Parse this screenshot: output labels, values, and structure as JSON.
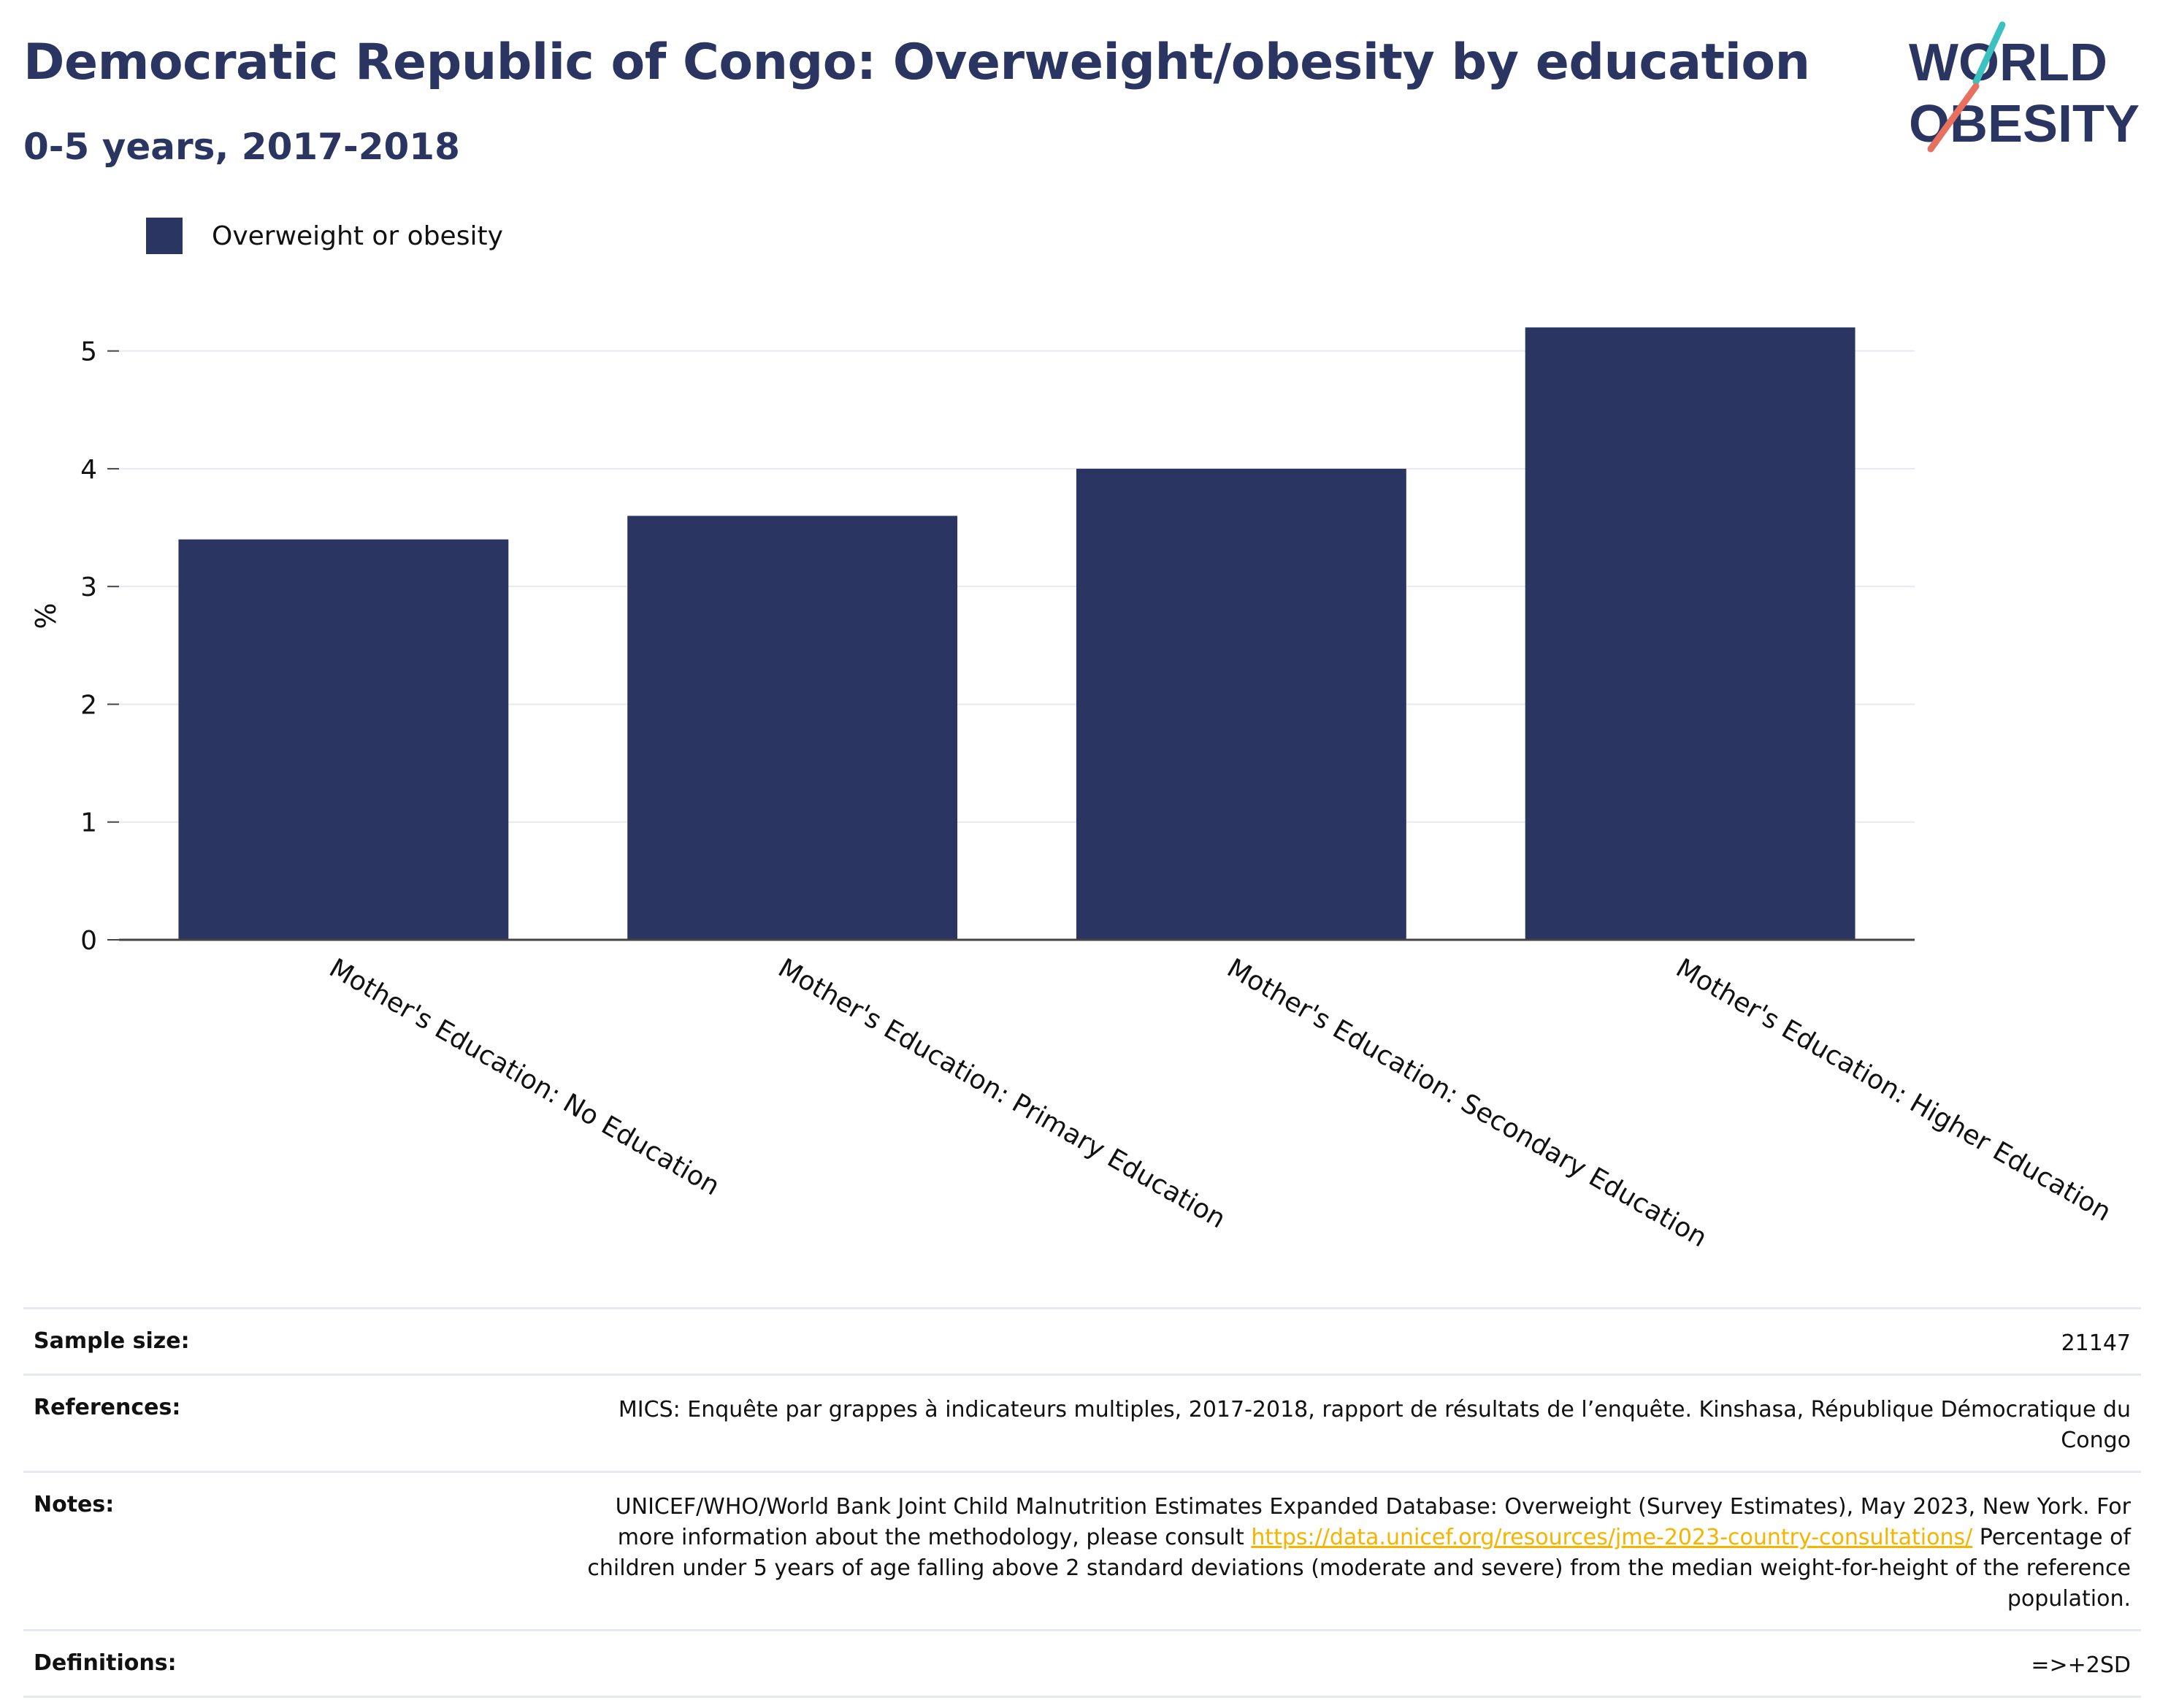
{
  "header": {
    "title": "Democratic Republic of Congo: Overweight/obesity by education",
    "subtitle": "0-5 years, 2017-2018"
  },
  "logo": {
    "line1": "WORLD",
    "line2": "OBESITY",
    "colors": {
      "text": "#2b3561",
      "slash_top": "#3cc0c0",
      "slash_bottom": "#e8705f"
    }
  },
  "legend": {
    "items": [
      {
        "label": "Overweight or obesity",
        "color": "#2b3561"
      }
    ]
  },
  "chart_data": {
    "type": "bar",
    "categories": [
      "Mother's Education: No Education",
      "Mother's Education: Primary Education",
      "Mother's Education: Secondary Education",
      "Mother's Education: Higher Education"
    ],
    "series": [
      {
        "name": "Overweight or obesity",
        "values": [
          3.4,
          3.6,
          4.0,
          5.2
        ],
        "color": "#2b3561"
      }
    ],
    "ylabel": "%",
    "yticks": [
      "0",
      "1",
      "2",
      "3",
      "4",
      "5"
    ],
    "ylim": [
      0,
      5.5
    ],
    "grid": true,
    "legend_position": "top-left"
  },
  "info": {
    "rows": [
      {
        "label": "Sample size:",
        "value": "21147"
      },
      {
        "label": "References:",
        "value": "MICS: Enquête par grappes à indicateurs multiples, 2017-2018, rapport de résultats de l’enquête. Kinshasa, République Démocratique du Congo"
      },
      {
        "label": "Notes:",
        "value_before_link": "UNICEF/WHO/World Bank Joint Child Malnutrition Estimates Expanded Database: Overweight (Survey Estimates), May 2023, New York. For more information about the methodology, please consult ",
        "link": "https://data.unicef.org/resources/jme-2023-country-consultations/",
        "value_after_link": " Percentage of children under 5 years of age falling above 2 standard deviations (moderate and severe) from the median weight-for-height of the reference population."
      },
      {
        "label": "Definitions:",
        "value": "=>+2SD"
      }
    ]
  }
}
